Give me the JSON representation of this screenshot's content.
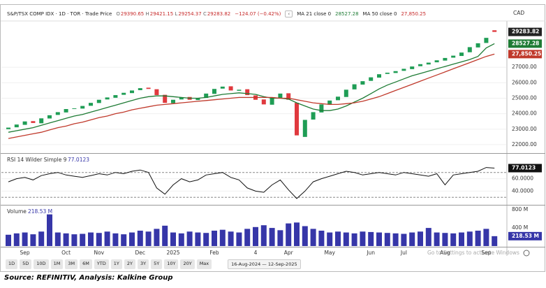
{
  "header": {
    "title": "S&P/TSX COMP IDX · 1D · TOR · Trade Price",
    "ohlc": [
      {
        "key": "O",
        "value": "29390.65"
      },
      {
        "key": "H",
        "value": "29421.15"
      },
      {
        "key": "L",
        "value": "29254.37"
      },
      {
        "key": "C",
        "value": "29283.82"
      }
    ],
    "change": "−124.07 (−0.42%)",
    "indicators": [
      {
        "name": "MA 21 close 0",
        "value": "28527.28"
      },
      {
        "name": "MA 50 close 0",
        "value": "27,850.25"
      }
    ],
    "currency": "CAD"
  },
  "chart_data": [
    {
      "type": "candlestick",
      "up_color": "#1f9d55",
      "down_color": "#e0393e",
      "open": [
        23000,
        23120,
        23280,
        23520,
        23380,
        23690,
        23920,
        24080,
        24320,
        24330,
        24510,
        24690,
        24920,
        25030,
        25220,
        25330,
        25520,
        25680,
        25580,
        25220,
        24680,
        24920,
        25080,
        24880,
        25020,
        25280,
        25620,
        25770,
        25480,
        25580,
        25180,
        24920,
        24580,
        25020,
        25320,
        24700,
        22500,
        23620,
        24080,
        24580,
        24870,
        25080,
        25570,
        25880,
        26120,
        26330,
        26570,
        26630,
        26770,
        26880,
        27070,
        27180,
        27320,
        27430,
        27620,
        27730,
        27970,
        28280,
        28570,
        29390.65
      ],
      "close": [
        23100,
        23300,
        23500,
        23400,
        23700,
        23900,
        24100,
        24300,
        24350,
        24500,
        24700,
        24900,
        25050,
        25200,
        25350,
        25500,
        25650,
        25600,
        25200,
        24700,
        24900,
        25050,
        24900,
        25000,
        25300,
        25600,
        25750,
        25500,
        25550,
        25200,
        24900,
        24600,
        25000,
        25300,
        24900,
        22600,
        23600,
        24100,
        24600,
        24850,
        25100,
        25550,
        25900,
        26100,
        26350,
        26550,
        26650,
        26750,
        26900,
        27050,
        27200,
        27300,
        27450,
        27600,
        27750,
        27950,
        28300,
        28550,
        28900,
        29283.82
      ],
      "series": [
        {
          "name": "MA 21 close 0",
          "color": "#1e7b34",
          "values": [
            22800,
            22900,
            23000,
            23100,
            23250,
            23400,
            23550,
            23700,
            23850,
            23950,
            24100,
            24250,
            24400,
            24550,
            24700,
            24850,
            25000,
            25100,
            25150,
            25150,
            25100,
            25050,
            25000,
            25000,
            25050,
            25150,
            25250,
            25300,
            25350,
            25300,
            25250,
            25100,
            25000,
            25000,
            24950,
            24700,
            24500,
            24300,
            24200,
            24200,
            24300,
            24500,
            24750,
            25000,
            25300,
            25600,
            25850,
            26050,
            26250,
            26450,
            26600,
            26750,
            26900,
            27050,
            27200,
            27350,
            27500,
            27700,
            28250,
            28527.28
          ]
        },
        {
          "name": "MA 50 close 0",
          "color": "#c0392b",
          "values": [
            22400,
            22500,
            22600,
            22700,
            22800,
            22950,
            23100,
            23200,
            23350,
            23450,
            23600,
            23750,
            23850,
            24000,
            24100,
            24250,
            24350,
            24450,
            24550,
            24600,
            24650,
            24700,
            24750,
            24800,
            24850,
            24900,
            24950,
            25000,
            25050,
            25050,
            25050,
            25050,
            25050,
            25000,
            25000,
            24900,
            24800,
            24700,
            24650,
            24600,
            24600,
            24650,
            24700,
            24800,
            24950,
            25100,
            25300,
            25500,
            25700,
            25900,
            26100,
            26300,
            26500,
            26700,
            26900,
            27100,
            27300,
            27500,
            27700,
            27850.25
          ]
        }
      ],
      "last_color": "#222222",
      "ylim": [
        21500,
        29900
      ],
      "yticks": [
        {
          "value": 22000,
          "label": "22000.00"
        },
        {
          "value": 23000,
          "label": "23000.00"
        },
        {
          "value": 24000,
          "label": "24000.00"
        },
        {
          "value": 25000,
          "label": "25000.00"
        },
        {
          "value": 26000,
          "label": "26000.00"
        },
        {
          "value": 27000,
          "label": "27000.00"
        }
      ],
      "grid": true
    },
    {
      "type": "line",
      "title": "RSI 14 Wilder Simple 9",
      "last_label": "77.0123",
      "series": [
        {
          "name": "RSI",
          "color": "#111111",
          "values": [
            55,
            60,
            62,
            58,
            65,
            68,
            70,
            66,
            64,
            62,
            65,
            68,
            66,
            70,
            68,
            72,
            74,
            70,
            45,
            35,
            50,
            60,
            55,
            58,
            66,
            68,
            70,
            62,
            58,
            45,
            40,
            38,
            50,
            58,
            42,
            28,
            40,
            55,
            60,
            64,
            68,
            72,
            70,
            66,
            68,
            70,
            68,
            66,
            70,
            68,
            66,
            64,
            68,
            50,
            66,
            68,
            70,
            72,
            78,
            77.0123
          ]
        }
      ],
      "levels": [
        30,
        70
      ],
      "ylim": [
        19,
        99
      ],
      "yticks": [
        {
          "value": 40,
          "label": "40.0000"
        },
        {
          "value": 60,
          "label": "60.0000"
        }
      ],
      "grid": true
    },
    {
      "type": "bar",
      "title": "Volume",
      "last_label": "218.53 M",
      "color": "#3636a8",
      "categories": [
        null,
        null,
        "Sep",
        null,
        null,
        null,
        null,
        "Oct",
        null,
        null,
        null,
        "Nov",
        null,
        null,
        null,
        null,
        "Dec",
        null,
        null,
        null,
        "2025",
        null,
        null,
        null,
        null,
        "Feb",
        null,
        null,
        null,
        null,
        "4",
        null,
        null,
        null,
        "Apr",
        null,
        null,
        null,
        null,
        "May",
        null,
        null,
        null,
        null,
        "Jun",
        null,
        null,
        null,
        "Jul",
        null,
        null,
        null,
        null,
        "Aug",
        null,
        null,
        null,
        null,
        "Sep",
        null
      ],
      "values": [
        250,
        280,
        300,
        260,
        320,
        700,
        300,
        280,
        260,
        270,
        300,
        290,
        320,
        280,
        260,
        300,
        340,
        320,
        380,
        450,
        300,
        280,
        320,
        300,
        290,
        340,
        360,
        320,
        300,
        380,
        420,
        460,
        400,
        350,
        500,
        520,
        440,
        380,
        340,
        300,
        320,
        300,
        280,
        320,
        310,
        300,
        290,
        280,
        270,
        300,
        320,
        400,
        300,
        290,
        280,
        300,
        320,
        340,
        380,
        218.53
      ],
      "ylim": [
        0,
        880
      ],
      "yticks": [
        {
          "value": 400,
          "label": "400 M"
        },
        {
          "value": 800,
          "label": "800 M"
        }
      ],
      "grid": false
    }
  ],
  "toolbar": {
    "ranges": [
      "1D",
      "5D",
      "10D",
      "1M",
      "3M",
      "6M",
      "YTD",
      "1Y",
      "2Y",
      "3Y",
      "5Y",
      "10Y",
      "20Y",
      "Max"
    ],
    "date_range": "16-Aug-2024 — 12-Sep-2025"
  },
  "watermark": "Go to Settings to activate Windows",
  "source": "Source: REFINITIV, Analysis: Kalkine Group"
}
